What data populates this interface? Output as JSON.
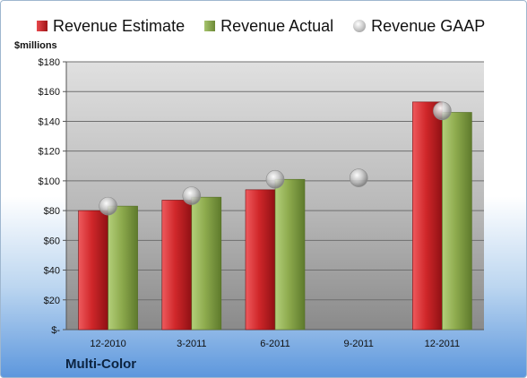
{
  "legend": {
    "estimate": "Revenue Estimate",
    "actual": "Revenue Actual",
    "gaap": "Revenue GAAP"
  },
  "unit_label": "$millions",
  "company": "Multi-Color",
  "colors": {
    "estimate": "#c4191c",
    "actual": "#8aa84b",
    "gaap": "#c0c0c0"
  },
  "chart_data": {
    "type": "bar",
    "categories": [
      "12-2010",
      "3-2011",
      "6-2011",
      "9-2011",
      "12-2011"
    ],
    "series": [
      {
        "name": "Revenue Estimate",
        "type": "bar",
        "values": [
          80,
          87,
          94,
          null,
          153
        ]
      },
      {
        "name": "Revenue Actual",
        "type": "bar",
        "values": [
          83,
          89,
          101,
          null,
          146
        ]
      },
      {
        "name": "Revenue GAAP",
        "type": "scatter",
        "values": [
          83,
          90,
          101,
          102,
          147
        ]
      }
    ],
    "ylabel": "$millions",
    "ylim": [
      0,
      180
    ],
    "yticks": [
      0,
      20,
      40,
      60,
      80,
      100,
      120,
      140,
      160,
      180
    ],
    "ytick_labels": [
      "$-",
      "$20",
      "$40",
      "$60",
      "$80",
      "$100",
      "$120",
      "$140",
      "$160",
      "$180"
    ],
    "grid": true,
    "legend_position": "top"
  }
}
